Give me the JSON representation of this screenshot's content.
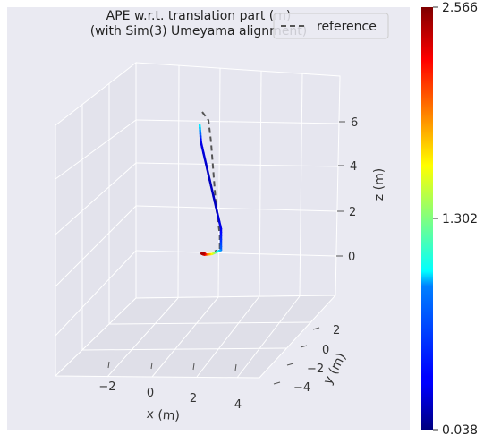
{
  "chart_data": {
    "type": "line",
    "projection": "3d",
    "title": "APE w.r.t. translation part (m)\n(with Sim(3) Umeyama alignment)",
    "title_lines": [
      "APE w.r.t. translation part (m)",
      "(with Sim(3) Umeyama alignment)"
    ],
    "xlabel": "x (m)",
    "ylabel": "y (m)",
    "zlabel": "z (m)",
    "x_ticks": [
      "−2",
      "0",
      "2",
      "4"
    ],
    "y_ticks": [
      "2",
      "0",
      "−2",
      "−4"
    ],
    "z_ticks": [
      "6",
      "4",
      "2",
      "0"
    ],
    "grid": true,
    "legend": {
      "placement": "top-right",
      "entries": [
        "reference"
      ]
    },
    "colorbar": {
      "colormap": "jet",
      "min": 0.038,
      "max": 2.566,
      "tick_labels": [
        "2.566",
        "1.302",
        "0.038"
      ]
    },
    "series": [
      {
        "name": "reference",
        "style": "dashed",
        "color": "#555555",
        "points": [
          {
            "x": 0.5,
            "y": -1.0,
            "z": 6.9
          },
          {
            "x": 0.8,
            "y": -0.8,
            "z": 6.5
          },
          {
            "x": 0.7,
            "y": -0.5,
            "z": 5.5
          },
          {
            "x": 0.6,
            "y": -0.2,
            "z": 4.0
          },
          {
            "x": 0.6,
            "y": 0.0,
            "z": 2.5
          },
          {
            "x": 0.7,
            "y": 0.2,
            "z": 1.2
          },
          {
            "x": 0.6,
            "y": 0.3,
            "z": 0.5
          },
          {
            "x": 0.2,
            "y": 0.3,
            "z": 0.4
          }
        ]
      },
      {
        "name": "estimate",
        "style": "solid",
        "colored_by": "APE (m)",
        "points": [
          {
            "x": 0.3,
            "y": -1.0,
            "z": 6.3,
            "ape": 1.0
          },
          {
            "x": 0.2,
            "y": -0.8,
            "z": 5.5,
            "ape": 0.3
          },
          {
            "x": 0.5,
            "y": -0.5,
            "z": 4.0,
            "ape": 0.2
          },
          {
            "x": 0.8,
            "y": -0.2,
            "z": 2.5,
            "ape": 0.2
          },
          {
            "x": 1.0,
            "y": 0.0,
            "z": 1.5,
            "ape": 0.3
          },
          {
            "x": 0.8,
            "y": 0.2,
            "z": 0.5,
            "ape": 0.6
          },
          {
            "x": -0.3,
            "y": 0.6,
            "z": 0.2,
            "ape": 1.5
          },
          {
            "x": -1.0,
            "y": 0.8,
            "z": 0.1,
            "ape": 2.0
          },
          {
            "x": -1.5,
            "y": 1.0,
            "z": 0.1,
            "ape": 2.5
          }
        ]
      }
    ]
  }
}
